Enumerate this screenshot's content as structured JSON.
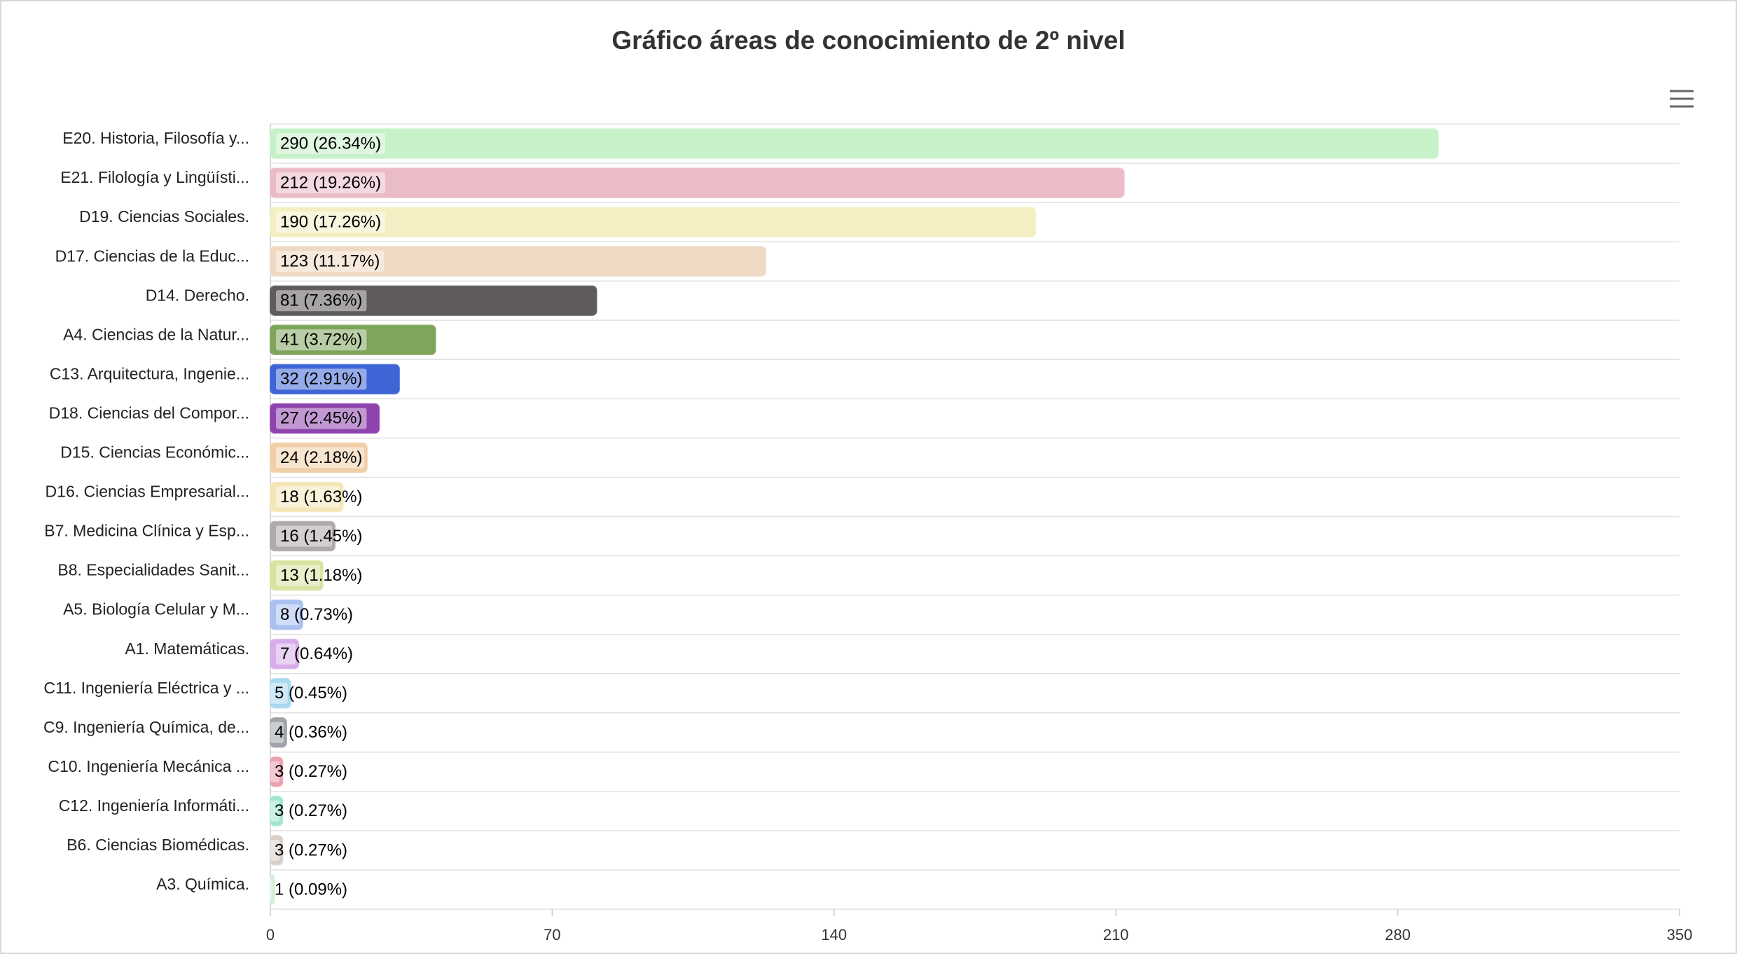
{
  "chart_data": {
    "type": "bar",
    "orientation": "horizontal",
    "title": "Gráfico áreas de conocimiento de 2º nivel",
    "categories": [
      "E20. Historia, Filosofía y...",
      "E21. Filología y Lingüísti...",
      "D19. Ciencias Sociales.",
      "D17. Ciencias de la Educ...",
      "D14. Derecho.",
      "A4. Ciencias de la Natur...",
      "C13. Arquitectura, Ingenie...",
      "D18. Ciencias del Compor...",
      "D15. Ciencias Económic...",
      "D16. Ciencias Empresarial...",
      "B7. Medicina Clínica y Esp...",
      "B8. Especialidades Sanit...",
      "A5. Biología Celular y M...",
      "A1. Matemáticas.",
      "C11. Ingeniería Eléctrica y ...",
      "C9. Ingeniería Química, de...",
      "C10. Ingeniería Mecánica ...",
      "C12. Ingeniería Informáti...",
      "B6. Ciencias Biomédicas.",
      "A3. Química."
    ],
    "values": [
      290,
      212,
      190,
      123,
      81,
      41,
      32,
      27,
      24,
      18,
      16,
      13,
      8,
      7,
      5,
      4,
      3,
      3,
      3,
      1
    ],
    "value_labels": [
      "290 (26.34%)",
      "212 (19.26%)",
      "190 (17.26%)",
      "123 (11.17%)",
      "81 (7.36%)",
      "41 (3.72%)",
      "32 (2.91%)",
      "27 (2.45%)",
      "24 (2.18%)",
      "18 (1.63%)",
      "16 (1.45%)",
      "13 (1.18%)",
      "8 (0.73%)",
      "7 (0.64%)",
      "5 (0.45%)",
      "4 (0.36%)",
      "3 (0.27%)",
      "3 (0.27%)",
      "3 (0.27%)",
      "1 (0.09%)"
    ],
    "colors": [
      "#c6f1c9",
      "#ecbcc6",
      "#f3efc3",
      "#f0d9c2",
      "#5f5a5c",
      "#7ea55b",
      "#3f64d6",
      "#8e44ad",
      "#f0cfa8",
      "#f5e6b8",
      "#b0a8ac",
      "#d9e2a0",
      "#a9c1ee",
      "#d7aee9",
      "#a9d8f0",
      "#9fa3a8",
      "#ec9fad",
      "#9fe6cc",
      "#d9cfc9",
      "#d4f0d8"
    ],
    "xlim": [
      0,
      350
    ],
    "xticks": [
      0,
      70,
      140,
      210,
      280,
      350
    ],
    "grid": true
  }
}
